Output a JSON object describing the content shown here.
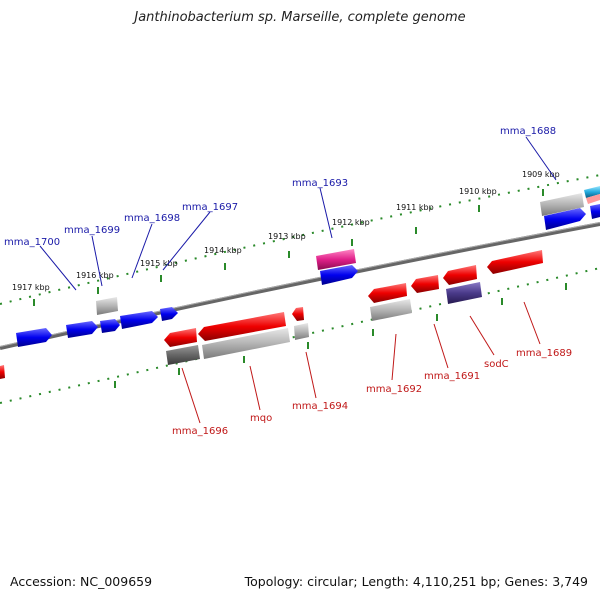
{
  "title": "Janthinobacterium sp. Marseille, complete genome",
  "footer": {
    "accession": "Accession: NC_009659",
    "summary": "Topology: circular; Length: 4,110,251 bp; Genes: 3,749"
  },
  "colors": {
    "backbone": "#777777",
    "tick": "#2a8a2a",
    "forward_gene": "#0000ee",
    "reverse_gene": "#ee0000",
    "pseudo": "#aaaaaa",
    "pink": "#e0208a",
    "purple": "#4a3a8a",
    "cyan": "#22aadd"
  },
  "kbp_ticks": [
    "1917 kbp",
    "1916 kbp",
    "1915 kbp",
    "1914 kbp",
    "1913 kbp",
    "1912 kbp",
    "1911 kbp",
    "1910 kbp",
    "1909 kbp"
  ],
  "forward_labels": [
    "mma_1700",
    "mma_1699",
    "mma_1698",
    "mma_1697",
    "mma_1693",
    "mma_1688"
  ],
  "reverse_labels": [
    "mma_1696",
    "mqo",
    "mma_1694",
    "mma_1692",
    "mma_1691",
    "sodC",
    "mma_1689"
  ]
}
